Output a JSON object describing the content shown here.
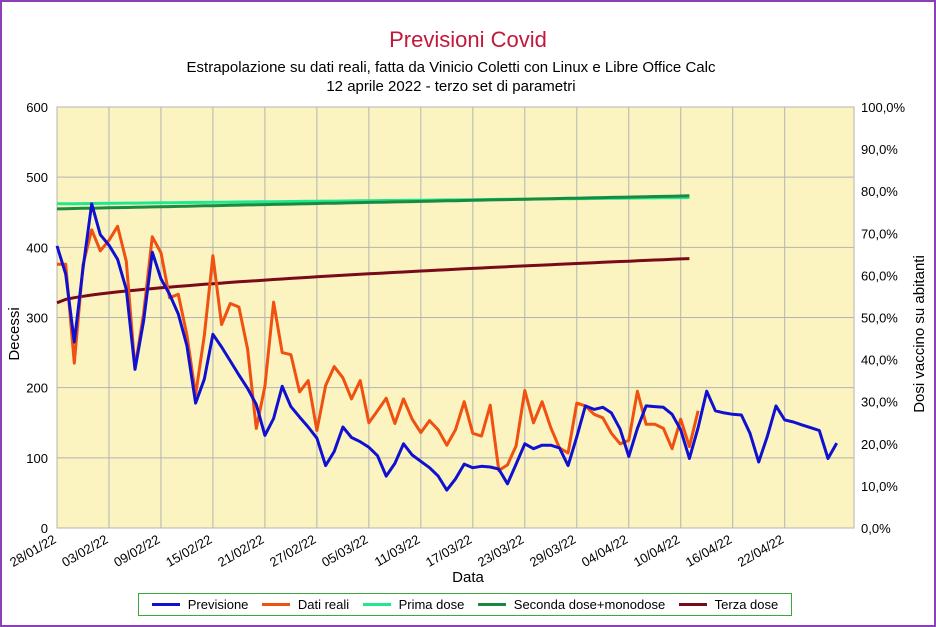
{
  "chart_data": {
    "type": "line",
    "title": "Previsioni Covid",
    "subtitle_line1": "Estrapolazione su dati reali, fatta da Vinicio Coletti con Linux e Libre Office Calc",
    "subtitle_line2": "12 aprile 2022 - terzo set di parametri",
    "xlabel": "Data",
    "ylabel": "Decessi",
    "y2label": "Dosi vaccino su abitanti",
    "ylim": [
      0,
      600
    ],
    "y2lim": [
      0,
      100
    ],
    "y_ticks": [
      "0",
      "100",
      "200",
      "300",
      "400",
      "500",
      "600"
    ],
    "y2_ticks": [
      "0,0%",
      "10,0%",
      "20,0%",
      "30,0%",
      "40,0%",
      "50,0%",
      "60,0%",
      "70,0%",
      "80,0%",
      "90,0%",
      "100,0%"
    ],
    "x_tick_labels": [
      "28/01/22",
      "03/02/22",
      "09/02/22",
      "15/02/22",
      "21/02/22",
      "27/02/22",
      "05/03/22",
      "11/03/22",
      "17/03/22",
      "23/03/22",
      "29/03/22",
      "04/04/22",
      "10/04/22",
      "16/04/22",
      "22/04/22"
    ],
    "x_start": "28/01/22",
    "x_end": "30/04/22",
    "grid": true,
    "legend_position": "bottom",
    "plot_background": "#fbf4c0",
    "series": [
      {
        "name": "Previsione",
        "axis": "left",
        "color": "#1010d0",
        "start": "28/01/22",
        "values": [
          402,
          362,
          265,
          370,
          462,
          418,
          403,
          383,
          340,
          226,
          295,
          393,
          355,
          333,
          305,
          260,
          178,
          212,
          276,
          258,
          238,
          218,
          199,
          176,
          132,
          156,
          202,
          173,
          158,
          144,
          128,
          89,
          109,
          144,
          129,
          123,
          115,
          103,
          74,
          92,
          120,
          104,
          95,
          86,
          74,
          54,
          70,
          91,
          86,
          88,
          87,
          84,
          63,
          91,
          120,
          113,
          118,
          118,
          114,
          89,
          130,
          174,
          169,
          172,
          164,
          141,
          102,
          142,
          174,
          173,
          172,
          162,
          140,
          99,
          143,
          195,
          167,
          164,
          162,
          161,
          135,
          94,
          131,
          174,
          154,
          151,
          147,
          143,
          139,
          99,
          121
        ]
      },
      {
        "name": "Dati reali",
        "axis": "left",
        "color": "#f05010",
        "start": "28/01/22",
        "values": [
          376,
          376,
          235,
          375,
          425,
          395,
          410,
          430,
          380,
          228,
          306,
          415,
          392,
          328,
          333,
          275,
          190,
          274,
          388,
          290,
          320,
          315,
          255,
          142,
          202,
          322,
          250,
          247,
          194,
          210,
          139,
          203,
          230,
          214,
          184,
          210,
          150,
          167,
          185,
          149,
          184,
          155,
          136,
          153,
          140,
          118,
          140,
          180,
          135,
          131,
          175,
          82,
          90,
          117,
          196,
          150,
          180,
          143,
          114,
          107,
          178,
          174,
          162,
          157,
          135,
          120,
          125,
          195,
          148,
          148,
          142,
          113,
          155,
          116,
          167
        ],
        "values_offset": 0
      },
      {
        "name": "Prima dose",
        "axis": "right",
        "color": "#20e890",
        "start": "28/01/22",
        "end": "11/04/22",
        "from": 77.0,
        "to": 78.5
      },
      {
        "name": "Seconda dose+monodose",
        "axis": "right",
        "color": "#1a8a40",
        "start": "28/01/22",
        "end": "11/04/22",
        "from": 75.8,
        "to": 78.9
      },
      {
        "name": "Terza dose",
        "axis": "right",
        "color": "#7a0a1a",
        "start": "28/01/22",
        "end": "11/04/22",
        "from": 53.5,
        "to": 64.0
      }
    ]
  }
}
